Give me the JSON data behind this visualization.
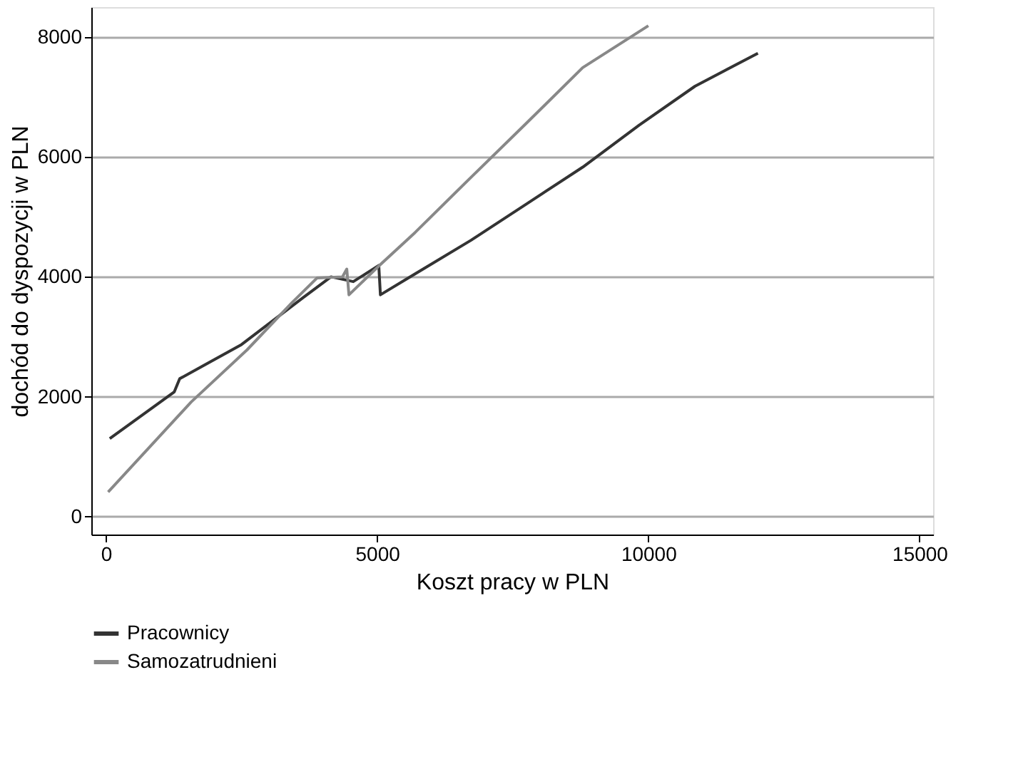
{
  "chart_data": {
    "type": "line",
    "xlabel": "Koszt pracy w PLN",
    "ylabel": "dochód do dyspozycji w PLN",
    "xlim": [
      -270,
      15250
    ],
    "ylim": [
      -300,
      8500
    ],
    "xticks": [
      0,
      5000,
      10000,
      15000
    ],
    "yticks": [
      0,
      2000,
      4000,
      6000,
      8000
    ],
    "grid": "y",
    "legend": "bottom",
    "line_style": "solid",
    "marker": "none",
    "series": [
      {
        "name": "Pracownicy",
        "color": "#333333",
        "x": [
          70,
          1260,
          1360,
          2500,
          3630,
          4150,
          4560,
          5030,
          5060,
          5700,
          6730,
          7760,
          8790,
          9830,
          10860,
          12020
        ],
        "values": [
          1300,
          2080,
          2300,
          2870,
          3650,
          4000,
          3920,
          4190,
          3700,
          4050,
          4610,
          5220,
          5830,
          6530,
          7180,
          7730
        ]
      },
      {
        "name": "Samozatrudnieni",
        "color": "#888888",
        "x": [
          40,
          1570,
          2600,
          3430,
          3890,
          4360,
          4440,
          4480,
          5030,
          5700,
          6730,
          7760,
          8790,
          10000
        ],
        "values": [
          410,
          1910,
          2780,
          3570,
          3980,
          4000,
          4130,
          3700,
          4180,
          4740,
          5660,
          6570,
          7490,
          8190
        ]
      }
    ]
  }
}
